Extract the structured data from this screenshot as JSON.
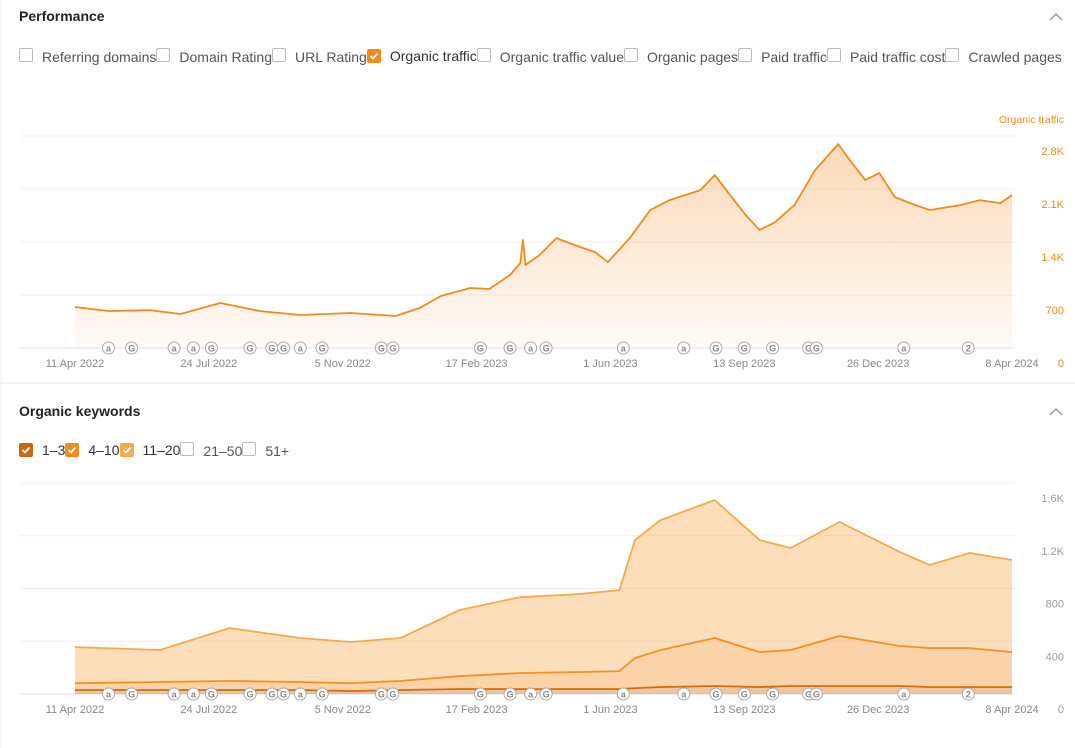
{
  "sections": [
    {
      "title": "Performance",
      "options": [
        {
          "label": "Referring domains",
          "checked": false
        },
        {
          "label": "Domain Rating",
          "checked": false
        },
        {
          "label": "URL Rating",
          "checked": false
        },
        {
          "label": "Organic traffic",
          "checked": true,
          "color": "#f28b1d"
        },
        {
          "label": "Organic traffic value",
          "checked": false
        },
        {
          "label": "Organic pages",
          "checked": false
        },
        {
          "label": "Paid traffic",
          "checked": false
        },
        {
          "label": "Paid traffic cost",
          "checked": false
        },
        {
          "label": "Crawled pages",
          "checked": false
        }
      ]
    },
    {
      "title": "Organic keywords",
      "options": [
        {
          "label": "1–3",
          "checked": true,
          "color": "#c9680e"
        },
        {
          "label": "4–10",
          "checked": true,
          "color": "#f28b1d"
        },
        {
          "label": "11–20",
          "checked": true,
          "color": "#f7a94b"
        },
        {
          "label": "21–50",
          "checked": false
        },
        {
          "label": "51+",
          "checked": false
        }
      ]
    }
  ],
  "annotations": [
    {
      "x": "2022-05-07",
      "label": "a"
    },
    {
      "x": "2022-05-25",
      "label": "G"
    },
    {
      "x": "2022-06-27",
      "label": "a"
    },
    {
      "x": "2022-07-12",
      "label": "a"
    },
    {
      "x": "2022-07-26",
      "label": "G"
    },
    {
      "x": "2022-08-25",
      "label": "G"
    },
    {
      "x": "2022-09-11",
      "label": "G"
    },
    {
      "x": "2022-09-20",
      "label": "G"
    },
    {
      "x": "2022-10-03",
      "label": "a"
    },
    {
      "x": "2022-10-20",
      "label": "G"
    },
    {
      "x": "2022-12-05",
      "label": "G"
    },
    {
      "x": "2022-12-14",
      "label": "G"
    },
    {
      "x": "2023-02-20",
      "label": "G"
    },
    {
      "x": "2023-03-15",
      "label": "G"
    },
    {
      "x": "2023-03-31",
      "label": "a"
    },
    {
      "x": "2023-04-12",
      "label": "G"
    },
    {
      "x": "2023-06-11",
      "label": "a"
    },
    {
      "x": "2023-07-28",
      "label": "a"
    },
    {
      "x": "2023-08-22",
      "label": "G"
    },
    {
      "x": "2023-09-13",
      "label": "G"
    },
    {
      "x": "2023-10-05",
      "label": "G"
    },
    {
      "x": "2023-11-02",
      "label": "G"
    },
    {
      "x": "2023-11-08",
      "label": "G"
    },
    {
      "x": "2024-01-15",
      "label": "a"
    },
    {
      "x": "2024-03-05",
      "label": "2"
    }
  ],
  "chart_data": [
    {
      "type": "area",
      "y_label": "Organic traffic",
      "x": [
        "2022-04-11",
        "2022-05-08",
        "2022-06-08",
        "2022-07-02",
        "2022-08-02",
        "2022-09-02",
        "2022-10-03",
        "2022-11-11",
        "2022-12-16",
        "2023-01-04",
        "2023-01-20",
        "2023-02-12",
        "2023-02-27",
        "2023-03-15",
        "2023-03-23",
        "2023-03-25",
        "2023-03-27",
        "2023-04-07",
        "2023-04-20",
        "2023-05-04",
        "2023-05-20",
        "2023-05-30",
        "2023-06-16",
        "2023-07-02",
        "2023-07-17",
        "2023-08-10",
        "2023-08-21",
        "2023-09-02",
        "2023-09-14",
        "2023-09-25",
        "2023-10-07",
        "2023-10-22",
        "2023-11-07",
        "2023-11-25",
        "2023-12-04",
        "2023-12-16",
        "2023-12-27",
        "2024-01-08",
        "2024-01-24",
        "2024-02-04",
        "2024-02-28",
        "2024-03-14",
        "2024-03-30",
        "2024-04-08"
      ],
      "series": [
        {
          "name": "Organic traffic",
          "color": "#f28b1d",
          "values": [
            541,
            488,
            500,
            449,
            594,
            488,
            436,
            462,
            422,
            528,
            686,
            792,
            779,
            964,
            1122,
            1426,
            1096,
            1228,
            1452,
            1360,
            1267,
            1135,
            1452,
            1822,
            1954,
            2086,
            2284,
            2020,
            1756,
            1558,
            1663,
            1888,
            2350,
            2693,
            2482,
            2218,
            2310,
            1993,
            1888,
            1822,
            1888,
            1954,
            1914,
            2020
          ]
        }
      ],
      "xlim": [
        "2022-04-11",
        "2024-04-08"
      ],
      "xticks": [
        {
          "value": "2022-04-11",
          "label": "11 Apr 2022"
        },
        {
          "value": "2022-07-24",
          "label": "24 Jul 2022"
        },
        {
          "value": "2022-11-05",
          "label": "5 Nov 2022"
        },
        {
          "value": "2023-02-17",
          "label": "17 Feb 2023"
        },
        {
          "value": "2023-06-01",
          "label": "1 Jun 2023"
        },
        {
          "value": "2023-09-13",
          "label": "13 Sep 2023"
        },
        {
          "value": "2023-12-26",
          "label": "26 Dec 2023"
        },
        {
          "value": "2024-04-08",
          "label": "8 Apr 2024"
        }
      ],
      "ylim": [
        0,
        2800
      ],
      "yticks": [
        0,
        700,
        {
          "value": 1400,
          "label": "1.4K"
        },
        {
          "value": 2100,
          "label": "2.1K"
        },
        {
          "value": 2800,
          "label": "2.8K"
        }
      ],
      "grid": true
    },
    {
      "type": "stacked_area",
      "x": [
        "2022-04-11",
        "2022-06-16",
        "2022-08-09",
        "2022-10-03",
        "2022-11-11",
        "2022-12-20",
        "2023-02-04",
        "2023-03-23",
        "2023-05-08",
        "2023-06-08",
        "2023-06-20",
        "2023-07-10",
        "2023-08-21",
        "2023-09-25",
        "2023-10-19",
        "2023-11-26",
        "2024-01-12",
        "2024-02-04",
        "2024-03-06",
        "2024-04-08"
      ],
      "series": [
        {
          "name": "1–3",
          "color": "#c9680e",
          "values": [
            30,
            30,
            30,
            30,
            23,
            30,
            38,
            38,
            38,
            38,
            45,
            53,
            61,
            53,
            61,
            61,
            61,
            53,
            53,
            53
          ]
        },
        {
          "name": "4–10",
          "color": "#f28b1d",
          "values": [
            53,
            61,
            69,
            61,
            60,
            69,
            98,
            121,
            129,
            136,
            228,
            281,
            364,
            265,
            273,
            379,
            303,
            296,
            296,
            265
          ]
        },
        {
          "name": "11–20",
          "color": "#f7a94b",
          "values": [
            273,
            243,
            401,
            334,
            311,
            326,
            501,
            576,
            591,
            614,
            894,
            985,
            1045,
            849,
            773,
            864,
            712,
            629,
            720,
            698
          ]
        }
      ],
      "xlim": [
        "2022-04-11",
        "2024-04-08"
      ],
      "xticks": [
        {
          "value": "2022-04-11",
          "label": "11 Apr 2022"
        },
        {
          "value": "2022-07-24",
          "label": "24 Jul 2022"
        },
        {
          "value": "2022-11-05",
          "label": "5 Nov 2022"
        },
        {
          "value": "2023-02-17",
          "label": "17 Feb 2023"
        },
        {
          "value": "2023-06-01",
          "label": "1 Jun 2023"
        },
        {
          "value": "2023-09-13",
          "label": "13 Sep 2023"
        },
        {
          "value": "2023-12-26",
          "label": "26 Dec 2023"
        },
        {
          "value": "2024-04-08",
          "label": "8 Apr 2024"
        }
      ],
      "ylim": [
        0,
        1600
      ],
      "yticks": [
        0,
        400,
        800,
        {
          "value": 1200,
          "label": "1.2K"
        },
        {
          "value": 1600,
          "label": "1.6K"
        }
      ],
      "grid": true
    }
  ]
}
